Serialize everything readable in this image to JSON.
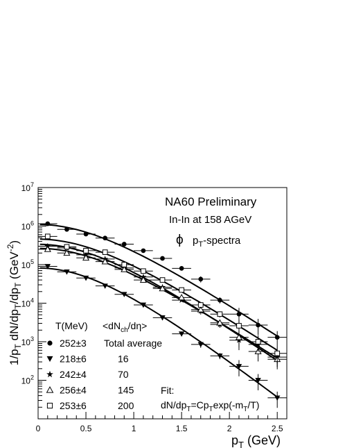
{
  "chart_data": {
    "type": "scatter",
    "scale": {
      "x": "linear",
      "y": "log"
    },
    "xlim": [
      0,
      2.6
    ],
    "ylim": [
      10,
      10000000
    ],
    "x_ticks": [
      "0",
      "0.5",
      "1",
      "1.5",
      "2",
      "2.5"
    ],
    "y_ticks": [
      {
        "base": "10",
        "exp": "2",
        "value": 100
      },
      {
        "base": "10",
        "exp": "3",
        "value": 1000
      },
      {
        "base": "10",
        "exp": "4",
        "value": 10000
      },
      {
        "base": "10",
        "exp": "5",
        "value": 100000
      },
      {
        "base": "10",
        "exp": "6",
        "value": 1000000
      },
      {
        "base": "10",
        "exp": "7",
        "value": 10000000
      }
    ],
    "xlabel": {
      "main": "p",
      "sub": "T",
      "rest": " (GeV)"
    },
    "ylabel": {
      "p1": "1/p",
      "s1": "T",
      "p2": " dN/dp",
      "s2": "T",
      "p3": "/dp",
      "s3": "T",
      "p4": " (GeV",
      "sup": "-2",
      "p5": ")"
    },
    "annotations": {
      "title": "NA60 Preliminary",
      "subtitle": "In-In at 158 AGeV",
      "phi_symbol": "ϕ",
      "spectra_main": "p",
      "spectra_sub": "T",
      "spectra_rest": "-spectra",
      "fit_label": "Fit:",
      "fit_f1": "dN/dp",
      "fit_s1": "T",
      "fit_f2": "=Cp",
      "fit_s2": "T",
      "fit_f3": "exp(-m",
      "fit_s3": "T",
      "fit_f4": "/T)"
    },
    "legend": {
      "placement": "bottom-left",
      "header_t": "T(MeV)",
      "header_n_pre": "<dN",
      "header_n_sub": "ch",
      "header_n_post": "/dη>"
    },
    "series": [
      {
        "name": "252±3",
        "mult": "Total average",
        "marker": "filled-circle",
        "T": 252,
        "x": [
          0.1,
          0.3,
          0.5,
          0.7,
          0.9,
          1.1,
          1.3,
          1.5,
          1.7,
          1.9,
          2.1,
          2.3,
          2.5
        ],
        "y": [
          1150000,
          820000,
          620000,
          490000,
          340000,
          230000,
          145000,
          80000,
          42000,
          12000,
          5200,
          2700,
          1300
        ]
      },
      {
        "name": "218±6",
        "mult": "16",
        "marker": "filled-triangle-down",
        "T": 218,
        "x": [
          0.1,
          0.3,
          0.5,
          0.7,
          0.9,
          1.1,
          1.3,
          1.5,
          1.7,
          1.9,
          2.1,
          2.3,
          2.5
        ],
        "y": [
          90000,
          65000,
          45000,
          28000,
          17000,
          9000,
          4200,
          1600,
          850,
          430,
          230,
          100,
          35
        ]
      },
      {
        "name": "242±4",
        "mult": "70",
        "marker": "filled-star",
        "T": 242,
        "x": [
          0.1,
          0.3,
          0.5,
          0.7,
          0.9,
          1.1,
          1.3,
          1.5,
          1.7,
          1.9,
          2.1,
          2.3,
          2.5
        ],
        "y": [
          300000,
          270000,
          180000,
          140000,
          82000,
          48000,
          26000,
          12000,
          6200,
          2800,
          1100,
          850,
          400
        ]
      },
      {
        "name": "256±4",
        "mult": "145",
        "marker": "open-triangle-up",
        "T": 256,
        "x": [
          0.1,
          0.3,
          0.5,
          0.7,
          0.9,
          1.1,
          1.3,
          1.5,
          1.7,
          1.9,
          2.1,
          2.3,
          2.5
        ],
        "y": [
          250000,
          200000,
          150000,
          120000,
          75000,
          40000,
          24000,
          14000,
          6800,
          3100,
          1300,
          560,
          350
        ]
      },
      {
        "name": "253±6",
        "mult": "200",
        "marker": "open-square",
        "T": 253,
        "x": [
          0.1,
          0.3,
          0.5,
          0.7,
          0.9,
          1.1,
          1.3,
          1.5,
          1.7,
          1.9,
          2.1,
          2.3,
          2.5
        ],
        "y": [
          540000,
          290000,
          230000,
          210000,
          100000,
          68000,
          40000,
          22000,
          9000,
          5200,
          2600,
          1000,
          500
        ]
      }
    ],
    "fit_curves": [
      {
        "series": "252±3",
        "norm": 1080000
      },
      {
        "series": "218±6",
        "norm": 80000
      },
      {
        "series": "242±4",
        "norm": 330000
      },
      {
        "series": "256±4",
        "norm": 260000
      },
      {
        "series": "253±6",
        "norm": 450000
      }
    ]
  }
}
